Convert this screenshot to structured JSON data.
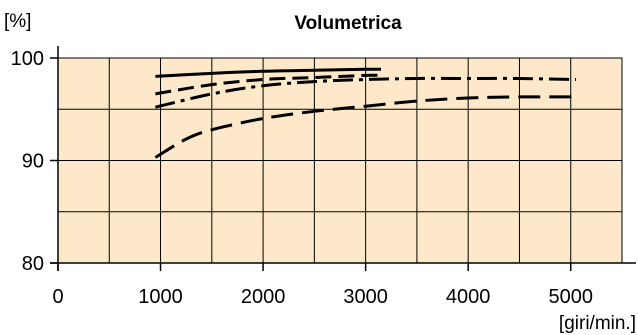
{
  "chart_data": {
    "type": "line",
    "title": "Volumetrica",
    "ylabel": "[%]",
    "xlabel": "[giri/min.]",
    "xlim": [
      0,
      5500
    ],
    "ylim": [
      80,
      100
    ],
    "grid": true,
    "colors": {
      "plot_background": "#fde9c9",
      "grid": "#000000",
      "line": "#000000"
    },
    "x_ticks": [
      {
        "value": 0,
        "label": "0"
      },
      {
        "value": 1000,
        "label": "1000"
      },
      {
        "value": 2000,
        "label": "2000"
      },
      {
        "value": 3000,
        "label": "3000"
      },
      {
        "value": 4000,
        "label": "4000"
      },
      {
        "value": 5000,
        "label": "5000"
      }
    ],
    "y_ticks": [
      {
        "value": 80,
        "label": "80"
      },
      {
        "value": 90,
        "label": "90"
      },
      {
        "value": 100,
        "label": "100"
      }
    ],
    "series": [
      {
        "style": "solid",
        "x": [
          950,
          1500,
          2000,
          2500,
          3000,
          3150
        ],
        "y": [
          98.2,
          98.5,
          98.7,
          98.8,
          98.9,
          98.9
        ]
      },
      {
        "style": "dashed",
        "x": [
          950,
          1500,
          2000,
          2500,
          3000,
          3150
        ],
        "y": [
          96.5,
          97.4,
          97.9,
          98.1,
          98.3,
          98.3
        ]
      },
      {
        "style": "dash-dot",
        "x": [
          950,
          1500,
          2000,
          2500,
          3000,
          3500,
          4000,
          4500,
          5050
        ],
        "y": [
          95.2,
          96.5,
          97.3,
          97.7,
          97.9,
          98.0,
          98.0,
          98.0,
          97.9
        ]
      },
      {
        "style": "long-dash",
        "x": [
          950,
          1250,
          1500,
          2000,
          2500,
          3000,
          3500,
          4000,
          4500,
          5050
        ],
        "y": [
          90.3,
          92.1,
          93.0,
          94.1,
          94.8,
          95.3,
          95.8,
          96.1,
          96.2,
          96.2
        ]
      }
    ]
  }
}
